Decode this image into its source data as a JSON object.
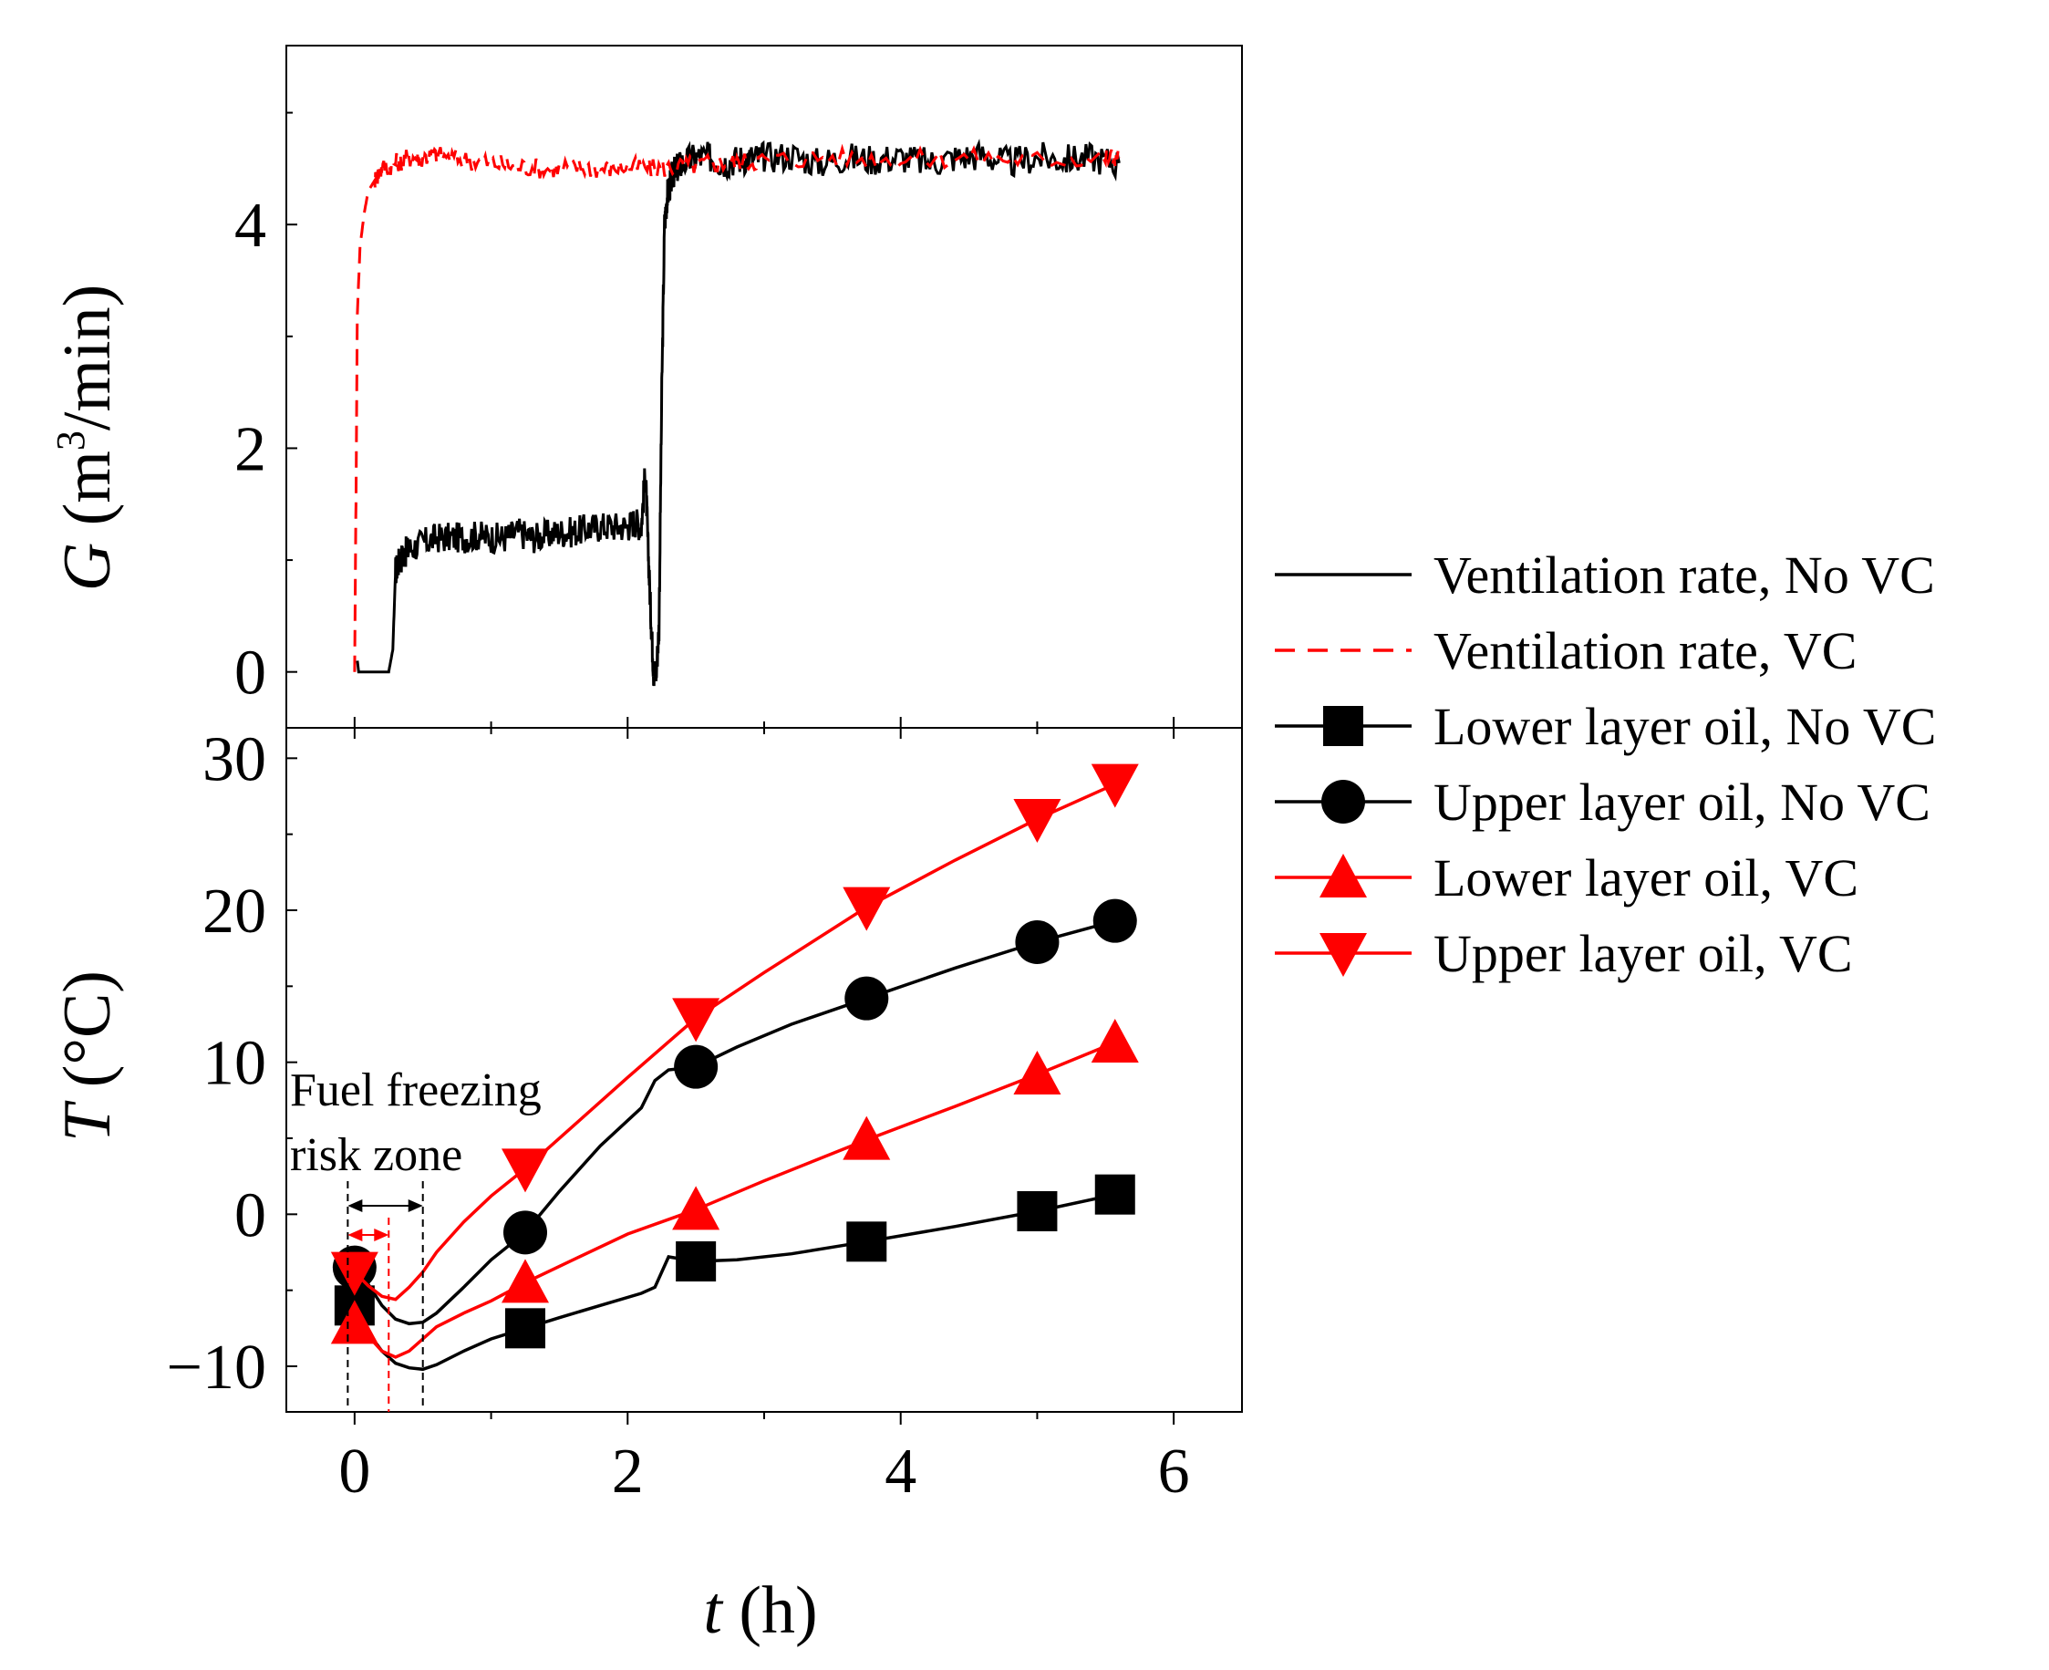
{
  "chart_data": [
    {
      "type": "line",
      "panel": "top",
      "ylabel": "G (m3/min)",
      "ylabel_parts": {
        "var": "G",
        "pre": " (m",
        "sup": "3",
        "post": "/min)"
      },
      "xlim": [
        -0.5,
        6.5
      ],
      "ylim": [
        -0.5,
        5.6
      ],
      "yticks": [
        0,
        2,
        4
      ],
      "series": [
        {
          "name": "Ventilation rate, No VC",
          "color": "#000000",
          "style": "solid",
          "x": [
            0.02,
            0.03,
            0.06,
            0.25,
            0.28,
            0.3,
            0.33,
            0.36,
            0.4,
            0.5,
            0.6,
            0.7,
            0.8,
            0.9,
            1.0,
            1.1,
            1.2,
            1.3,
            1.4,
            1.5,
            1.6,
            1.7,
            1.8,
            1.9,
            2.0,
            2.05,
            2.1,
            2.13,
            2.15,
            2.17,
            2.19,
            2.21,
            2.23,
            2.25,
            2.27,
            2.29,
            2.31,
            2.33,
            2.36,
            2.4,
            2.5,
            2.6,
            2.7,
            2.8,
            2.9,
            3.0,
            3.2,
            3.4,
            3.6,
            3.8,
            4.0,
            4.2,
            4.4,
            4.6,
            4.8,
            5.0,
            5.2,
            5.4,
            5.6
          ],
          "y": [
            0.1,
            0.0,
            0.0,
            0.0,
            0.2,
            0.9,
            1.0,
            1.05,
            1.1,
            1.15,
            1.2,
            1.2,
            1.2,
            1.22,
            1.2,
            1.2,
            1.25,
            1.2,
            1.22,
            1.25,
            1.25,
            1.28,
            1.3,
            1.3,
            1.3,
            1.35,
            1.3,
            1.8,
            1.1,
            0.5,
            0.0,
            0.0,
            0.4,
            2.5,
            4.0,
            4.25,
            4.35,
            4.45,
            4.5,
            4.55,
            4.6,
            4.6,
            4.55,
            4.58,
            4.6,
            4.6,
            4.62,
            4.55,
            4.6,
            4.58,
            4.6,
            4.55,
            4.6,
            4.62,
            4.55,
            4.6,
            4.58,
            4.6,
            4.55
          ]
        },
        {
          "name": "Ventilation rate, VC",
          "color": "#ff0000",
          "style": "dashed",
          "x": [
            0.0,
            0.01,
            0.02,
            0.04,
            0.07,
            0.1,
            0.15,
            0.2,
            0.3,
            0.4,
            0.5,
            0.6,
            0.8,
            1.0,
            1.2,
            1.4,
            1.6,
            1.8,
            2.0,
            2.2,
            2.4,
            2.6,
            2.8,
            3.0,
            3.5,
            4.0,
            4.5,
            5.0,
            5.5,
            5.6
          ],
          "y": [
            0.0,
            1.5,
            3.2,
            3.8,
            4.1,
            4.3,
            4.4,
            4.5,
            4.55,
            4.6,
            4.6,
            4.62,
            4.58,
            4.55,
            4.52,
            4.5,
            4.52,
            4.5,
            4.52,
            4.5,
            4.52,
            4.55,
            4.55,
            4.58,
            4.6,
            4.58,
            4.6,
            4.58,
            4.6,
            4.6
          ]
        }
      ]
    },
    {
      "type": "line",
      "panel": "bottom",
      "ylabel": "T (°C)",
      "ylabel_parts": {
        "var": "T",
        "rest": " (°C)"
      },
      "xlabel": "t (h)",
      "xlabel_parts": {
        "var": "t",
        "rest": " (h)"
      },
      "xlim": [
        -0.5,
        6.5
      ],
      "ylim": [
        -13,
        32
      ],
      "yticks": [
        -10,
        0,
        10,
        20,
        30
      ],
      "ytick_labels": [
        "−10",
        "0",
        "10",
        "20",
        "30"
      ],
      "xticks": [
        0,
        2,
        4,
        6
      ],
      "xtick_labels": [
        "0",
        "2",
        "4",
        "6"
      ],
      "series": [
        {
          "name": "Lower layer oil, No VC",
          "color": "#000000",
          "marker": "square",
          "x": [
            0.0,
            0.1,
            0.2,
            0.3,
            0.4,
            0.5,
            0.6,
            0.8,
            1.0,
            1.25,
            1.5,
            1.8,
            2.1,
            2.2,
            2.3,
            2.5,
            2.8,
            3.2,
            3.75,
            4.4,
            5.0,
            5.57
          ],
          "y": [
            -6.0,
            -7.8,
            -9.0,
            -9.8,
            -10.1,
            -10.2,
            -9.9,
            -9.0,
            -8.2,
            -7.5,
            -6.8,
            -6.0,
            -5.2,
            -4.8,
            -2.8,
            -3.1,
            -3.0,
            -2.6,
            -1.8,
            -0.8,
            0.2,
            1.3
          ],
          "marker_x": [
            0.0,
            1.25,
            2.5,
            3.75,
            5.0,
            5.57
          ],
          "marker_y": [
            -6.0,
            -7.5,
            -3.1,
            -1.8,
            0.2,
            1.3
          ]
        },
        {
          "name": "Upper layer oil, No VC",
          "color": "#000000",
          "marker": "circle",
          "x": [
            0.0,
            0.1,
            0.2,
            0.3,
            0.4,
            0.5,
            0.6,
            0.8,
            1.0,
            1.25,
            1.5,
            1.8,
            2.1,
            2.2,
            2.3,
            2.5,
            2.8,
            3.2,
            3.75,
            4.4,
            5.0,
            5.57
          ],
          "y": [
            -3.5,
            -4.6,
            -6.0,
            -6.9,
            -7.2,
            -7.1,
            -6.5,
            -4.8,
            -3.0,
            -1.2,
            1.5,
            4.5,
            7.0,
            8.8,
            9.5,
            9.7,
            11.0,
            12.5,
            14.2,
            16.2,
            17.9,
            19.3
          ],
          "marker_x": [
            0.0,
            1.25,
            2.5,
            3.75,
            5.0,
            5.57
          ],
          "marker_y": [
            -3.5,
            -1.2,
            9.7,
            14.2,
            17.9,
            19.3
          ]
        },
        {
          "name": "Lower layer oil, VC",
          "color": "#ff0000",
          "marker": "triangle-up",
          "x": [
            0.0,
            0.1,
            0.2,
            0.3,
            0.4,
            0.5,
            0.6,
            0.8,
            1.0,
            1.25,
            1.6,
            2.0,
            2.5,
            3.0,
            3.75,
            4.4,
            5.0,
            5.57
          ],
          "y": [
            -7.2,
            -8.0,
            -9.0,
            -9.4,
            -9.0,
            -8.2,
            -7.4,
            -6.5,
            -5.7,
            -4.5,
            -3.0,
            -1.3,
            0.3,
            2.2,
            4.9,
            7.1,
            9.2,
            11.3
          ],
          "marker_x": [
            0.0,
            1.25,
            2.5,
            3.75,
            5.0,
            5.57
          ],
          "marker_y": [
            -7.2,
            -4.5,
            0.3,
            4.9,
            9.2,
            11.3
          ]
        },
        {
          "name": "Upper layer oil, VC",
          "color": "#ff0000",
          "marker": "triangle-down",
          "x": [
            0.0,
            0.1,
            0.2,
            0.3,
            0.4,
            0.5,
            0.6,
            0.8,
            1.0,
            1.25,
            1.6,
            2.0,
            2.5,
            3.0,
            3.75,
            4.4,
            5.0,
            5.57
          ],
          "y": [
            -3.8,
            -4.7,
            -5.4,
            -5.6,
            -4.8,
            -3.8,
            -2.5,
            -0.5,
            1.2,
            3.0,
            5.8,
            9.0,
            12.9,
            15.9,
            20.2,
            23.3,
            26.0,
            28.3
          ],
          "marker_x": [
            0.0,
            1.25,
            2.5,
            3.75,
            5.0,
            5.57
          ],
          "marker_y": [
            -3.8,
            3.0,
            12.9,
            20.2,
            26.0,
            28.3
          ]
        }
      ],
      "annotations": {
        "risk_zone_line1": "Fuel freezing",
        "risk_zone_line2": "risk zone",
        "markers_x": {
          "black_start": -0.05,
          "black_end": 0.5,
          "red_end": 0.25
        }
      }
    }
  ],
  "legend": [
    {
      "label": "Ventilation rate, No VC",
      "color": "#000000",
      "style": "solid",
      "marker": "none"
    },
    {
      "label": "Ventilation rate, VC",
      "color": "#ff0000",
      "style": "dashed",
      "marker": "none"
    },
    {
      "label": "Lower layer oil, No VC",
      "color": "#000000",
      "style": "solid",
      "marker": "square"
    },
    {
      "label": "Upper layer oil, No VC",
      "color": "#000000",
      "style": "solid",
      "marker": "circle"
    },
    {
      "label": "Lower layer oil, VC",
      "color": "#ff0000",
      "style": "solid",
      "marker": "triangle-up"
    },
    {
      "label": "Upper layer oil, VC",
      "color": "#ff0000",
      "style": "solid",
      "marker": "triangle-down"
    }
  ]
}
